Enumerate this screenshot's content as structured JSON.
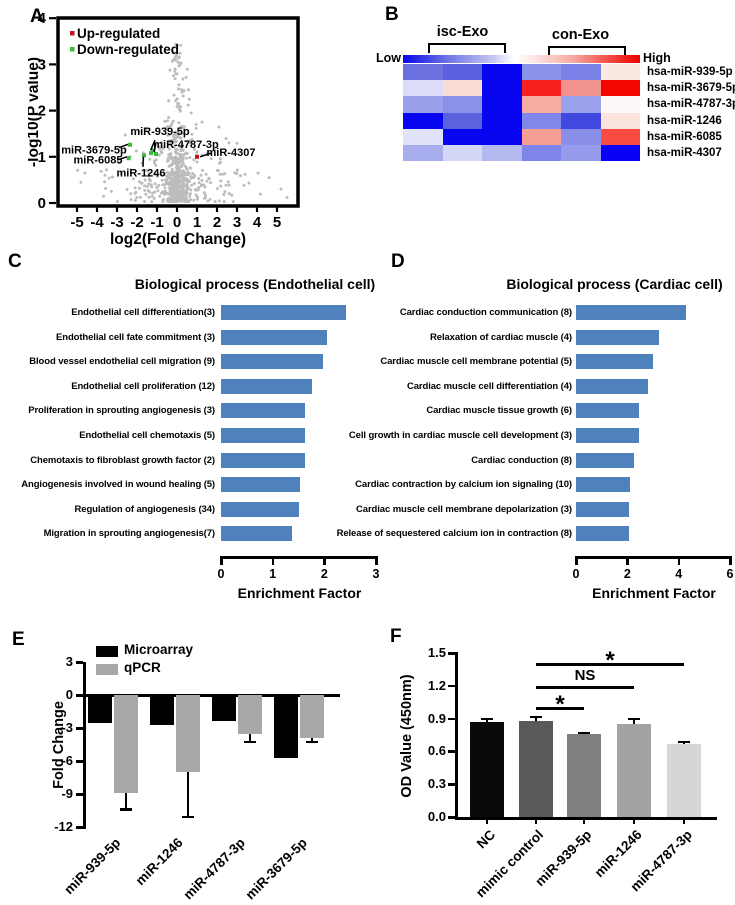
{
  "chart_data": [
    {
      "panel": "A",
      "type": "scatter",
      "xlabel": "log2(Fold Change)",
      "ylabel": "-log10(P value)",
      "xlim": [
        -6,
        6
      ],
      "ylim": [
        0,
        4
      ],
      "xticks": [
        -5,
        -4,
        -3,
        -2,
        -1,
        0,
        1,
        2,
        3,
        4,
        5
      ],
      "yticks": [
        0,
        1,
        2,
        3,
        4
      ],
      "legend": [
        {
          "label": "Up-regulated",
          "color": "#c0161c"
        },
        {
          "label": "Down-regulated",
          "color": "#3dbb3d"
        }
      ],
      "up_points": [
        [
          1.0,
          1.0
        ]
      ],
      "down_points": [
        [
          -2.35,
          1.26
        ],
        [
          -2.42,
          0.97
        ],
        [
          -1.65,
          1.03
        ],
        [
          -1.3,
          1.08
        ],
        [
          -1.18,
          1.14
        ],
        [
          -1.05,
          1.06
        ]
      ],
      "annotations": [
        {
          "text": "miR-939-5p",
          "tx": -0.85,
          "ty": 1.56,
          "line": [
            [
              -1.1,
              1.36
            ],
            [
              -1.32,
              1.14
            ]
          ]
        },
        {
          "text": "miR-4787-3p",
          "tx": 0.45,
          "ty": 1.28,
          "line": [
            [
              -1.05,
              1.3
            ],
            [
              -1.15,
              1.1
            ]
          ]
        },
        {
          "text": "miR-3679-5p",
          "tx": -4.15,
          "ty": 1.16,
          "line": [
            [
              -2.9,
              1.2
            ],
            [
              -2.45,
              1.27
            ]
          ]
        },
        {
          "text": "miR-6085",
          "tx": -3.95,
          "ty": 0.94,
          "line": [
            [
              -3.0,
              0.93
            ],
            [
              -2.5,
              1.0
            ]
          ]
        },
        {
          "text": "miR-1246",
          "tx": -1.8,
          "ty": 0.66,
          "line": [
            [
              -1.7,
              0.78
            ],
            [
              -1.68,
              1.0
            ]
          ]
        },
        {
          "text": "miR-4307",
          "tx": 2.7,
          "ty": 1.1,
          "line": [
            [
              1.7,
              1.08
            ],
            [
              1.15,
              1.0
            ]
          ]
        }
      ],
      "background_points": {
        "count": 660,
        "color": "#bcbcbc",
        "description": "non-significant probes, dense column near log2FC=0"
      }
    },
    {
      "panel": "B",
      "type": "heatmap",
      "group_labels": [
        "isc-Exo",
        "con-Exo"
      ],
      "colorbar": {
        "low": "Low",
        "high": "High"
      },
      "rows": [
        "hsa-miR-939-5p",
        "hsa-miR-3679-5p",
        "hsa-miR-4787-3p",
        "hsa-miR-1246",
        "hsa-miR-6085",
        "hsa-miR-4307"
      ],
      "cell_colors": [
        [
          "#6b70e0",
          "#5a60de",
          "#0806f0",
          "#8a92ea",
          "#7a82e8",
          "#fce8e2"
        ],
        [
          "#dcdcf8",
          "#fadcd6",
          "#0806f0",
          "#f8201c",
          "#f2928f",
          "#f50500"
        ],
        [
          "#9aa0ea",
          "#8a92e8",
          "#0806f0",
          "#f8aba2",
          "#9aa2ec",
          "#fdf8fa"
        ],
        [
          "#0806f0",
          "#5a62de",
          "#0806f0",
          "#8087e8",
          "#4048e0",
          "#fbe4de"
        ],
        [
          "#e0e2fa",
          "#0806f0",
          "#0806f0",
          "#f89d94",
          "#8a90e9",
          "#f84b42"
        ],
        [
          "#a8aeed",
          "#d4d8f6",
          "#b4baf0",
          "#7d85e8",
          "#969ceb",
          "#0800f5"
        ]
      ]
    },
    {
      "panel": "C",
      "type": "bar",
      "orientation": "horizontal",
      "title": "Biological process (Endothelial cell)",
      "xlabel": "Enrichment Factor",
      "xlim": [
        0,
        3
      ],
      "xticks": [
        0,
        1,
        2,
        3
      ],
      "bar_color": "#4f81bd",
      "categories": [
        "Endothelial cell differentiation(3)",
        "Endothelial cell fate commitment (3)",
        "Blood vessel endothelial cell migration (9)",
        "Endothelial cell proliferation (12)",
        "Proliferation in sprouting angiogenesis (3)",
        "Endothelial cell chemotaxis (5)",
        "Chemotaxis to fibroblast growth factor (2)",
        "Angiogenesis involved in wound healing (5)",
        "Regulation of angiogenesis (34)",
        "Migration in sprouting angiogenesis(7)"
      ],
      "values": [
        2.42,
        2.06,
        1.98,
        1.77,
        1.63,
        1.62,
        1.62,
        1.52,
        1.5,
        1.38
      ]
    },
    {
      "panel": "D",
      "type": "bar",
      "orientation": "horizontal",
      "title": "Biological process (Cardiac cell)",
      "xlabel": "Enrichment Factor",
      "xlim": [
        0,
        6
      ],
      "xticks": [
        0,
        2,
        4,
        6
      ],
      "bar_color": "#4f81bd",
      "categories": [
        "Cardiac conduction communication (8)",
        "Relaxation of cardiac muscle (4)",
        "Cardiac muscle cell membrane potential (5)",
        "Cardiac muscle cell differentiation (4)",
        "Cardiac muscle tissue growth (6)",
        "Cell growth in cardiac muscle cell development (3)",
        "Cardiac conduction (8)",
        "Cardiac contraction by calcium ion signaling (10)",
        "Cardiac muscle cell membrane depolarization (3)",
        "Release of sequestered calcium ion in contraction (8)"
      ],
      "values": [
        4.3,
        3.25,
        3.0,
        2.8,
        2.45,
        2.45,
        2.25,
        2.1,
        2.05,
        2.05
      ]
    },
    {
      "panel": "E",
      "type": "bar",
      "ylabel": "Fold Change",
      "ylim": [
        -12,
        3
      ],
      "yticks": [
        3,
        0,
        -3,
        -6,
        -9,
        -12
      ],
      "categories": [
        "miR-939-5p",
        "miR-1246",
        "miR-4787-3p",
        "miR-3679-5p"
      ],
      "series": [
        {
          "name": "Microarray",
          "color": "#000000",
          "values": [
            -2.5,
            -2.7,
            -2.4,
            -5.7
          ],
          "errors": [
            0,
            0,
            0,
            0
          ]
        },
        {
          "name": "qPCR",
          "color": "#a8a8a8",
          "values": [
            -8.9,
            -7.0,
            -3.5,
            -3.9
          ],
          "errors": [
            1.5,
            4.1,
            0.75,
            0.35
          ]
        }
      ]
    },
    {
      "panel": "F",
      "type": "bar",
      "ylabel": "OD Value (450nm)",
      "ylim": [
        0,
        1.5
      ],
      "yticks": [
        "0.0",
        "0.3",
        "0.6",
        "0.9",
        "1.2",
        "1.5"
      ],
      "categories": [
        "NC",
        "mimic control",
        "miR-939-5p",
        "miR-1246",
        "miR-4787-3p"
      ],
      "values": [
        0.87,
        0.88,
        0.76,
        0.85,
        0.67
      ],
      "errors": [
        0.025,
        0.035,
        0.012,
        0.045,
        0.02
      ],
      "bar_colors": [
        "#0a0a0a",
        "#595959",
        "#7f7f7f",
        "#a3a3a3",
        "#d6d6d6"
      ],
      "significance": [
        {
          "label": "*",
          "from": "mimic control",
          "to": "miR-4787-3p"
        },
        {
          "label": "NS",
          "from": "mimic control",
          "to": "miR-1246"
        },
        {
          "label": "*",
          "from": "mimic control",
          "to": "miR-939-5p"
        }
      ]
    }
  ]
}
